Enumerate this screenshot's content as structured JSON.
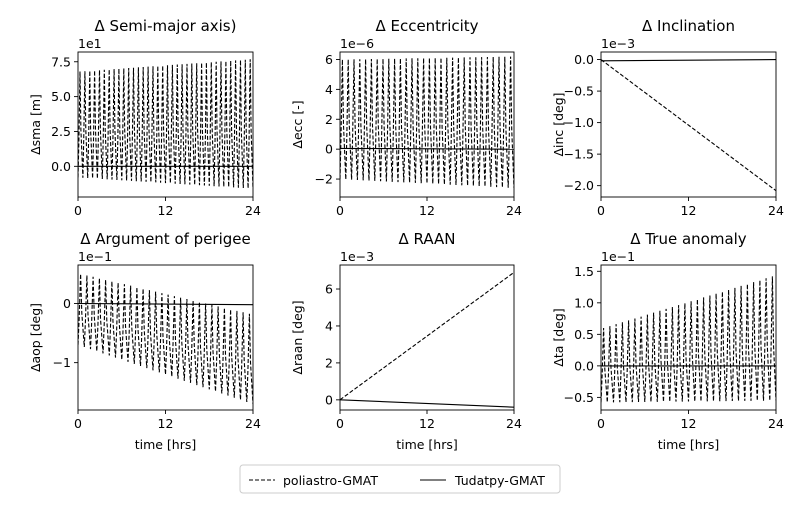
{
  "legend": {
    "entries": [
      {
        "label": "poliastro-GMAT",
        "dash": "4,2"
      },
      {
        "label": "Tudatpy-GMAT",
        "dash": ""
      }
    ]
  },
  "chart_data": [
    {
      "type": "line",
      "title": "Δ Semi-major axis)",
      "ylabel": "Δsma [m]",
      "xlabel": "",
      "scale_label": "1e1",
      "xlim": [
        0,
        24
      ],
      "ylim": [
        -2.2,
        8.2
      ],
      "xticks": [
        0,
        12,
        24
      ],
      "xtick_labels": [
        "0",
        "12",
        "24"
      ],
      "yticks": [
        7.5,
        5.0,
        2.5,
        0.0
      ],
      "ytick_labels": [
        "7.5",
        "5.0",
        "2.5",
        "0.0"
      ],
      "grid": false,
      "series": [
        {
          "name": "poliastro-GMAT",
          "style": "dashed",
          "kind": "oscillation",
          "cycles": 36,
          "lower_start": -0.8,
          "lower_end": -1.6,
          "upper_start": 6.8,
          "upper_end": 7.7
        },
        {
          "name": "Tudatpy-GMAT",
          "style": "solid",
          "kind": "linear",
          "start": 0.0,
          "end": 0.0
        }
      ]
    },
    {
      "type": "line",
      "title": "Δ Eccentricity",
      "ylabel": "Δecc [-]",
      "xlabel": "",
      "scale_label": "1e−6",
      "xlim": [
        0,
        24
      ],
      "ylim": [
        -3.2,
        6.5
      ],
      "xticks": [
        0,
        12,
        24
      ],
      "xtick_labels": [
        "0",
        "12",
        "24"
      ],
      "yticks": [
        6,
        4,
        2,
        0,
        -2
      ],
      "ytick_labels": [
        "6",
        "4",
        "2",
        "0",
        "−2"
      ],
      "grid": false,
      "series": [
        {
          "name": "poliastro-GMAT",
          "style": "dashed",
          "kind": "oscillation",
          "cycles": 30,
          "lower_start": -2.0,
          "lower_end": -2.6,
          "upper_start": 6.0,
          "upper_end": 6.2
        },
        {
          "name": "Tudatpy-GMAT",
          "style": "solid",
          "kind": "linear",
          "start": 0.05,
          "end": 0.0
        }
      ]
    },
    {
      "type": "line",
      "title": "Δ Inclination",
      "ylabel": "Δinc [deg]",
      "xlabel": "",
      "scale_label": "1e−3",
      "xlim": [
        0,
        24
      ],
      "ylim": [
        -2.18,
        0.12
      ],
      "xticks": [
        0,
        12,
        24
      ],
      "xtick_labels": [
        "0",
        "12",
        "24"
      ],
      "yticks": [
        0.0,
        -0.5,
        -1.0,
        -1.5,
        -2.0
      ],
      "ytick_labels": [
        "0.0",
        "−0.5",
        "−1.0",
        "−1.5",
        "−2.0"
      ],
      "grid": false,
      "series": [
        {
          "name": "poliastro-GMAT",
          "style": "dashed",
          "kind": "linear",
          "start": 0.0,
          "end": -2.08
        },
        {
          "name": "Tudatpy-GMAT",
          "style": "solid",
          "kind": "linear",
          "start": -0.02,
          "end": 0.0
        }
      ]
    },
    {
      "type": "line",
      "title": "Δ Argument of perigee",
      "ylabel": "Δaop [deg]",
      "xlabel": "time [hrs]",
      "scale_label": "1e−1",
      "xlim": [
        0,
        24
      ],
      "ylim": [
        -1.8,
        0.65
      ],
      "xticks": [
        0,
        12,
        24
      ],
      "xtick_labels": [
        "0",
        "12",
        "24"
      ],
      "yticks": [
        0,
        -1
      ],
      "ytick_labels": [
        "0",
        "−1"
      ],
      "grid": false,
      "series": [
        {
          "name": "poliastro-GMAT",
          "style": "dashed",
          "kind": "oscillation",
          "cycles": 28,
          "lower_start": -0.7,
          "lower_end": -1.7,
          "upper_start": 0.5,
          "upper_end": -0.2
        },
        {
          "name": "Tudatpy-GMAT",
          "style": "solid",
          "kind": "linear",
          "start": 0.0,
          "end": -0.02
        }
      ]
    },
    {
      "type": "line",
      "title": "Δ RAAN",
      "ylabel": "Δraan [deg]",
      "xlabel": "time [hrs]",
      "scale_label": "1e−3",
      "xlim": [
        0,
        24
      ],
      "ylim": [
        -0.55,
        7.3
      ],
      "xticks": [
        0,
        12,
        24
      ],
      "xtick_labels": [
        "0",
        "12",
        "24"
      ],
      "yticks": [
        6,
        4,
        2,
        0
      ],
      "ytick_labels": [
        "6",
        "4",
        "2",
        "0"
      ],
      "grid": false,
      "series": [
        {
          "name": "poliastro-GMAT",
          "style": "dashed",
          "kind": "linear",
          "start": 0.0,
          "end": 6.9
        },
        {
          "name": "Tudatpy-GMAT",
          "style": "solid",
          "kind": "linear",
          "start": 0.0,
          "end": -0.4
        }
      ]
    },
    {
      "type": "line",
      "title": "Δ True anomaly",
      "ylabel": "Δta [deg]",
      "xlabel": "time [hrs]",
      "scale_label": "1e−1",
      "xlim": [
        0,
        24
      ],
      "ylim": [
        -0.7,
        1.6
      ],
      "xticks": [
        0,
        12,
        24
      ],
      "xtick_labels": [
        "0",
        "12",
        "24"
      ],
      "yticks": [
        1.5,
        1.0,
        0.5,
        0.0,
        -0.5
      ],
      "ytick_labels": [
        "1.5",
        "1.0",
        "0.5",
        "0.0",
        "−0.5"
      ],
      "grid": false,
      "series": [
        {
          "name": "poliastro-GMAT",
          "style": "dashed",
          "kind": "oscillation",
          "cycles": 28,
          "lower_start": -0.58,
          "lower_end": -0.55,
          "upper_start": 0.6,
          "upper_end": 1.45
        },
        {
          "name": "Tudatpy-GMAT",
          "style": "solid",
          "kind": "linear",
          "start": 0.0,
          "end": 0.0
        }
      ]
    }
  ]
}
